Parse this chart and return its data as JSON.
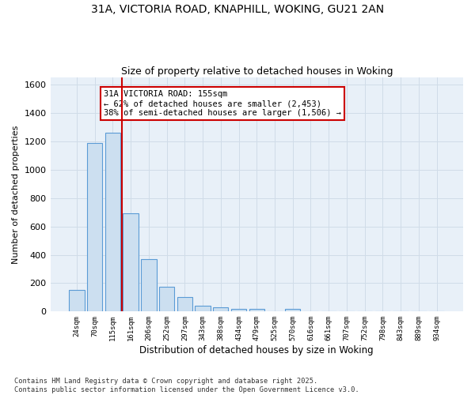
{
  "title_line1": "31A, VICTORIA ROAD, KNAPHILL, WOKING, GU21 2AN",
  "title_line2": "Size of property relative to detached houses in Woking",
  "xlabel": "Distribution of detached houses by size in Woking",
  "ylabel": "Number of detached properties",
  "categories": [
    "24sqm",
    "70sqm",
    "115sqm",
    "161sqm",
    "206sqm",
    "252sqm",
    "297sqm",
    "343sqm",
    "388sqm",
    "434sqm",
    "479sqm",
    "525sqm",
    "570sqm",
    "616sqm",
    "661sqm",
    "707sqm",
    "752sqm",
    "798sqm",
    "843sqm",
    "889sqm",
    "934sqm"
  ],
  "values": [
    150,
    1190,
    1260,
    690,
    370,
    175,
    100,
    40,
    30,
    20,
    20,
    0,
    20,
    0,
    0,
    0,
    0,
    0,
    0,
    0,
    0
  ],
  "bar_color": "#ccdff0",
  "bar_edge_color": "#5b9bd5",
  "annotation_text": "31A VICTORIA ROAD: 155sqm\n← 62% of detached houses are smaller (2,453)\n38% of semi-detached houses are larger (1,506) →",
  "annotation_box_color": "#ffffff",
  "annotation_box_edge": "#cc0000",
  "vline_color": "#cc0000",
  "vline_x": 2.5,
  "grid_color": "#d0dce8",
  "background_color": "#e8f0f8",
  "ylim": [
    0,
    1650
  ],
  "yticks": [
    0,
    200,
    400,
    600,
    800,
    1000,
    1200,
    1400,
    1600
  ],
  "footer_line1": "Contains HM Land Registry data © Crown copyright and database right 2025.",
  "footer_line2": "Contains public sector information licensed under the Open Government Licence v3.0."
}
